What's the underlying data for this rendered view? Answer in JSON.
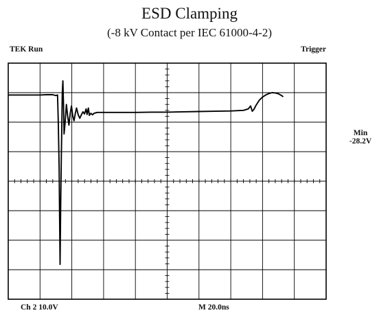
{
  "chart_data": {
    "type": "line",
    "title": "ESD Clamping",
    "subtitle": "(-8 kV Contact per IEC 61000-4-2)",
    "grid": true,
    "grid_divisions": {
      "x": 10,
      "y": 8
    },
    "status": {
      "left": "TEK Run",
      "right": "Trigger"
    },
    "measurement": {
      "label": "Min",
      "value": "-28.2V"
    },
    "channel_scale": "Ch 2  10.0V",
    "time_scale": "M  20.0ns",
    "y_unit_per_div": 10,
    "x_unit_per_div": 20,
    "ylim": [
      -40,
      40
    ],
    "xlim": [
      -100,
      100
    ],
    "series": [
      {
        "values_xy": [
          [
            -100,
            29.2
          ],
          [
            -92,
            29.2
          ],
          [
            -84,
            29.2
          ],
          [
            -80,
            29.2
          ],
          [
            -76,
            29.3
          ],
          [
            -72,
            29.3
          ],
          [
            -70,
            29.0
          ],
          [
            -69,
            29.2
          ],
          [
            -68.5,
            20.0
          ],
          [
            -68,
            5.0
          ],
          [
            -67.7,
            -12.0
          ],
          [
            -67.4,
            -28.2
          ],
          [
            -67.0,
            -8.0
          ],
          [
            -66.6,
            8.0
          ],
          [
            -66.3,
            18.0
          ],
          [
            -66.0,
            29.8
          ],
          [
            -65.6,
            34.0
          ],
          [
            -65.2,
            25.0
          ],
          [
            -64.9,
            16.0
          ],
          [
            -64.2,
            20.0
          ],
          [
            -63.4,
            26.0
          ],
          [
            -62.6,
            22.0
          ],
          [
            -61.8,
            19.0
          ],
          [
            -61.0,
            23.0
          ],
          [
            -60.2,
            25.5
          ],
          [
            -59.4,
            22.0
          ],
          [
            -58.6,
            20.5
          ],
          [
            -57.8,
            23.0
          ],
          [
            -57.0,
            24.8
          ],
          [
            -56.0,
            22.5
          ],
          [
            -55.0,
            21.3
          ],
          [
            -54.0,
            22.5
          ],
          [
            -53.0,
            23.5
          ],
          [
            -52.0,
            22.8
          ],
          [
            -51.0,
            24.5
          ],
          [
            -50.4,
            22.6
          ],
          [
            -49.6,
            24.8
          ],
          [
            -49.0,
            22.3
          ],
          [
            -48.0,
            23.0
          ],
          [
            -47.0,
            22.5
          ],
          [
            -46.0,
            23.0
          ],
          [
            -44.0,
            23.3
          ],
          [
            -40.0,
            23.3
          ],
          [
            -30.0,
            23.3
          ],
          [
            -20.0,
            23.3
          ],
          [
            -10.0,
            23.4
          ],
          [
            0.0,
            23.4
          ],
          [
            10.0,
            23.5
          ],
          [
            20.0,
            23.6
          ],
          [
            30.0,
            23.7
          ],
          [
            40.0,
            23.8
          ],
          [
            48.0,
            24.0
          ],
          [
            51.0,
            24.5
          ],
          [
            52.5,
            25.5
          ],
          [
            53.5,
            23.7
          ],
          [
            54.5,
            24.3
          ],
          [
            56.0,
            25.8
          ],
          [
            58.0,
            27.5
          ],
          [
            60.0,
            28.5
          ],
          [
            62.0,
            29.2
          ],
          [
            64.0,
            29.7
          ],
          [
            66.0,
            30.0
          ],
          [
            68.0,
            29.9
          ],
          [
            70.0,
            29.6
          ],
          [
            72.0,
            29.0
          ],
          [
            73.0,
            28.6
          ]
        ]
      }
    ]
  }
}
